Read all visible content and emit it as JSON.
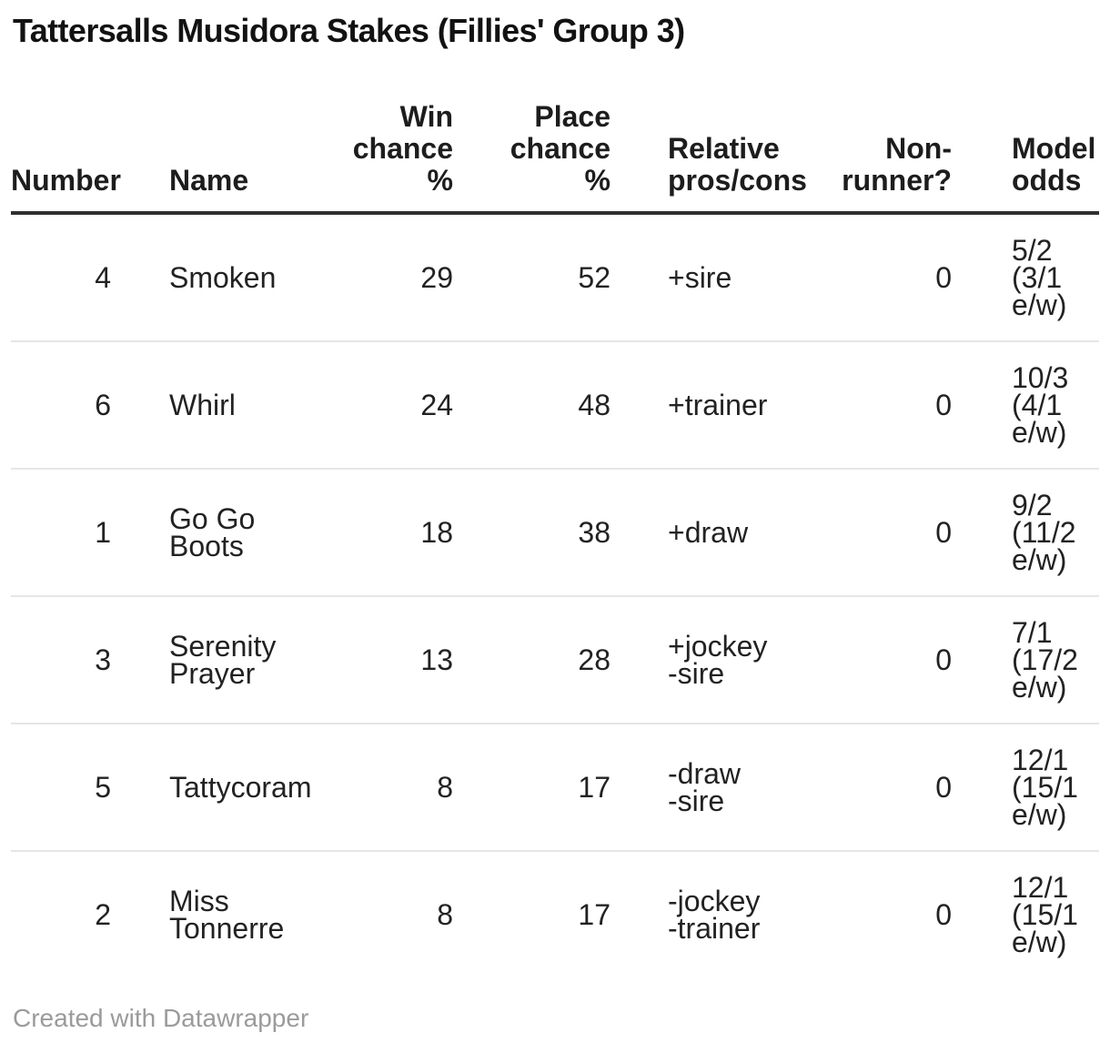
{
  "header": {
    "title": "Tattersalls Musidora Stakes (Fillies' Group 3)"
  },
  "chart_data": {
    "type": "table",
    "title": "Tattersalls Musidora Stakes (Fillies' Group 3)",
    "columns": [
      {
        "id": "number",
        "label": "Number",
        "align": "right"
      },
      {
        "id": "name",
        "label": "Name",
        "align": "left"
      },
      {
        "id": "win_chance_pct",
        "label": "Win\nchance\n%",
        "align": "right"
      },
      {
        "id": "place_chance_pct",
        "label": "Place\nchance\n%",
        "align": "right"
      },
      {
        "id": "relative_pros_cons",
        "label": "Relative\npros/cons",
        "align": "left"
      },
      {
        "id": "non_runner",
        "label": "Non-\nrunner?",
        "align": "right"
      },
      {
        "id": "model_odds",
        "label": "Model\nodds",
        "align": "left"
      }
    ],
    "rows": [
      {
        "number": 4,
        "name": "Smoken",
        "win_chance_pct": 29,
        "place_chance_pct": 52,
        "relative_pros_cons": "+sire",
        "non_runner": 0,
        "model_odds": "5/2\n(3/1\ne/w)"
      },
      {
        "number": 6,
        "name": "Whirl",
        "win_chance_pct": 24,
        "place_chance_pct": 48,
        "relative_pros_cons": "+trainer",
        "non_runner": 0,
        "model_odds": "10/3\n(4/1\ne/w)"
      },
      {
        "number": 1,
        "name": "Go Go Boots",
        "win_chance_pct": 18,
        "place_chance_pct": 38,
        "relative_pros_cons": "+draw",
        "non_runner": 0,
        "model_odds": "9/2\n(11/2\ne/w)"
      },
      {
        "number": 3,
        "name": "Serenity Prayer",
        "win_chance_pct": 13,
        "place_chance_pct": 28,
        "relative_pros_cons": "+jockey\n-sire",
        "non_runner": 0,
        "model_odds": "7/1\n(17/2\ne/w)"
      },
      {
        "number": 5,
        "name": "Tattycoram",
        "win_chance_pct": 8,
        "place_chance_pct": 17,
        "relative_pros_cons": "-draw\n-sire",
        "non_runner": 0,
        "model_odds": "12/1\n(15/1\ne/w)"
      },
      {
        "number": 2,
        "name": "Miss Tonnerre",
        "win_chance_pct": 8,
        "place_chance_pct": 17,
        "relative_pros_cons": "-jockey\n-trainer",
        "non_runner": 0,
        "model_odds": "12/1\n(15/1\ne/w)"
      }
    ]
  },
  "footer": {
    "credit": "Created with Datawrapper"
  },
  "colors": {
    "text": "#1d1d1d",
    "muted_text": "#9b9b9b",
    "header_rule": "#2f2f2f",
    "row_divider": "#e6e6e6",
    "background": "#ffffff"
  }
}
